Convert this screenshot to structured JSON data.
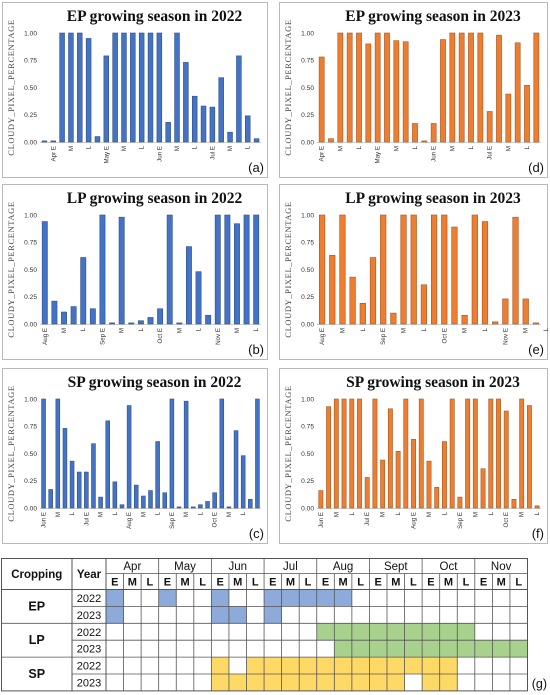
{
  "charts": [
    {
      "id": "a",
      "type": "bar",
      "title": "EP growing  season  in  2022",
      "ylabel": "CLOUDY_PIXEL_PERCENTAGE",
      "panel_label": "(a)",
      "color": "#4472c4",
      "ylim": [
        0,
        1
      ],
      "yticks": [
        "0.00",
        "0.25",
        "0.50",
        "0.75",
        "1.00"
      ],
      "values": [
        0.01,
        0.01,
        1.0,
        1.0,
        1.0,
        0.95,
        0.05,
        0.79,
        1.0,
        1.0,
        1.0,
        1.0,
        1.0,
        1.0,
        0.18,
        1.0,
        0.73,
        0.42,
        0.33,
        0.32,
        0.59,
        0.09,
        0.79,
        0.24,
        0.03
      ],
      "xticks": [
        {
          "i": 1,
          "label": "Apr E"
        },
        {
          "i": 3,
          "label": "M"
        },
        {
          "i": 5,
          "label": "L"
        },
        {
          "i": 7,
          "label": "May E"
        },
        {
          "i": 9,
          "label": "M"
        },
        {
          "i": 11,
          "label": "L"
        },
        {
          "i": 13,
          "label": "Jun E"
        },
        {
          "i": 15,
          "label": "M"
        },
        {
          "i": 17,
          "label": "L"
        },
        {
          "i": 19,
          "label": "Jul E"
        },
        {
          "i": 21,
          "label": "M"
        },
        {
          "i": 23,
          "label": "L"
        }
      ]
    },
    {
      "id": "d",
      "type": "bar",
      "title": "EP growing  season  in  2023",
      "ylabel": "CLOUDY_PIXEL_PERCENTAGE",
      "panel_label": "(d)",
      "color": "#ed7d31",
      "ylim": [
        0,
        1
      ],
      "yticks": [
        "0.00",
        "0.25",
        "0.50",
        "0.75",
        "1.00"
      ],
      "values": [
        0.78,
        0.03,
        1.0,
        1.0,
        1.0,
        0.9,
        1.0,
        1.0,
        0.93,
        0.92,
        0.17,
        0.01,
        0.17,
        0.94,
        1.0,
        1.0,
        1.0,
        1.0,
        0.28,
        0.98,
        0.44,
        0.91,
        0.52,
        1.0
      ],
      "xticks": [
        {
          "i": 0,
          "label": "Apr E"
        },
        {
          "i": 2,
          "label": "M"
        },
        {
          "i": 4,
          "label": "L"
        },
        {
          "i": 6,
          "label": "May E"
        },
        {
          "i": 8,
          "label": "M"
        },
        {
          "i": 10,
          "label": "L"
        },
        {
          "i": 12,
          "label": "Jun E"
        },
        {
          "i": 14,
          "label": "M"
        },
        {
          "i": 16,
          "label": "L"
        },
        {
          "i": 18,
          "label": "Jul E"
        },
        {
          "i": 20,
          "label": "M"
        },
        {
          "i": 22,
          "label": "L"
        }
      ]
    },
    {
      "id": "b",
      "type": "bar",
      "title": "LP growing  season  in  2022",
      "ylabel": "CLOUDY_PIXEL_PERCENTAGE",
      "panel_label": "(b)",
      "color": "#4472c4",
      "ylim": [
        0,
        1
      ],
      "yticks": [
        "0.00",
        "0.25",
        "0.50",
        "0.75",
        "1.00"
      ],
      "values": [
        0.94,
        0.21,
        0.11,
        0.16,
        0.61,
        0.14,
        1.0,
        0.01,
        0.98,
        0.01,
        0.03,
        0.06,
        0.14,
        1.0,
        0.01,
        0.71,
        0.48,
        0.08,
        1.0,
        1.0,
        0.92,
        1.0,
        1.0
      ],
      "xticks": [
        {
          "i": 0,
          "label": "Aug E"
        },
        {
          "i": 2,
          "label": "M"
        },
        {
          "i": 4,
          "label": "L"
        },
        {
          "i": 6,
          "label": "Sep E"
        },
        {
          "i": 8,
          "label": "M"
        },
        {
          "i": 10,
          "label": "L"
        },
        {
          "i": 12,
          "label": "Oct E"
        },
        {
          "i": 14,
          "label": "M"
        },
        {
          "i": 16,
          "label": "L"
        },
        {
          "i": 18,
          "label": "Nov E"
        },
        {
          "i": 20,
          "label": "M"
        },
        {
          "i": 22,
          "label": "L"
        }
      ]
    },
    {
      "id": "e",
      "type": "bar",
      "title": "LP growing  season  in  2023",
      "ylabel": "CLOUDY_PIXEL_PERCENTAGE",
      "panel_label": "(e)",
      "color": "#ed7d31",
      "ylim": [
        0,
        1
      ],
      "yticks": [
        "0.00",
        "0.25",
        "0.50",
        "0.75",
        "1.00"
      ],
      "values": [
        1.0,
        0.63,
        1.0,
        0.43,
        0.19,
        0.61,
        1.0,
        0.1,
        1.0,
        1.0,
        0.36,
        1.0,
        1.0,
        0.89,
        0.08,
        1.0,
        0.94,
        0.02,
        0.23,
        0.98,
        0.23,
        0.01
      ],
      "xticks": [
        {
          "i": 0,
          "label": "Aug E"
        },
        {
          "i": 2,
          "label": "M"
        },
        {
          "i": 4,
          "label": "L"
        },
        {
          "i": 6,
          "label": "Sep E"
        },
        {
          "i": 8,
          "label": "M"
        },
        {
          "i": 10,
          "label": "L"
        },
        {
          "i": 12,
          "label": "Oct E"
        },
        {
          "i": 14,
          "label": "M"
        },
        {
          "i": 16,
          "label": "L"
        },
        {
          "i": 18,
          "label": "Nov E"
        },
        {
          "i": 20,
          "label": "M"
        },
        {
          "i": 22,
          "label": "L"
        }
      ]
    },
    {
      "id": "c",
      "type": "bar",
      "title": "SP growing  season  in  2022",
      "ylabel": "CLOUDY_PIXEL_PERCENTAGE",
      "panel_label": "(c)",
      "color": "#4472c4",
      "ylim": [
        0,
        1
      ],
      "yticks": [
        "0.00",
        "0.25",
        "0.50",
        "0.75",
        "1.00"
      ],
      "values": [
        1.0,
        0.17,
        1.0,
        0.73,
        0.43,
        0.33,
        0.33,
        0.59,
        0.1,
        0.8,
        0.24,
        0.03,
        0.94,
        0.21,
        0.11,
        0.16,
        0.61,
        0.14,
        1.0,
        0.01,
        0.98,
        0.01,
        0.03,
        0.06,
        0.14,
        1.0,
        0.01,
        0.71,
        0.48,
        0.08,
        1.0
      ],
      "xticks": [
        {
          "i": 0,
          "label": "Jun E"
        },
        {
          "i": 2,
          "label": "M"
        },
        {
          "i": 4,
          "label": "L"
        },
        {
          "i": 6,
          "label": "Jul E"
        },
        {
          "i": 8,
          "label": "M"
        },
        {
          "i": 10,
          "label": "L"
        },
        {
          "i": 12,
          "label": "Aug E"
        },
        {
          "i": 14,
          "label": "M"
        },
        {
          "i": 16,
          "label": "L"
        },
        {
          "i": 18,
          "label": "Sep E"
        },
        {
          "i": 20,
          "label": "M"
        },
        {
          "i": 22,
          "label": "L"
        },
        {
          "i": 24,
          "label": "Oct E"
        },
        {
          "i": 26,
          "label": "M"
        },
        {
          "i": 28,
          "label": "L"
        }
      ]
    },
    {
      "id": "f",
      "type": "bar",
      "title": "SP growing  season  in  2023",
      "ylabel": "CLOUDY_PIXEL_PERCENTAGE",
      "panel_label": "(f)",
      "color": "#ed7d31",
      "ylim": [
        0,
        1
      ],
      "yticks": [
        "0.00",
        "0.25",
        "0.50",
        "0.75",
        "1.00"
      ],
      "values": [
        0.16,
        0.93,
        1.0,
        1.0,
        1.0,
        1.0,
        0.28,
        1.0,
        0.44,
        0.91,
        0.52,
        1.0,
        0.63,
        1.0,
        0.43,
        0.19,
        0.61,
        1.0,
        0.1,
        1.0,
        1.0,
        0.36,
        1.0,
        1.0,
        0.89,
        0.08,
        1.0,
        0.94,
        0.02
      ],
      "xticks": [
        {
          "i": 0,
          "label": "Jun E"
        },
        {
          "i": 2,
          "label": "M"
        },
        {
          "i": 4,
          "label": "L"
        },
        {
          "i": 6,
          "label": "Jul E"
        },
        {
          "i": 8,
          "label": "M"
        },
        {
          "i": 10,
          "label": "L"
        },
        {
          "i": 12,
          "label": "Aug E"
        },
        {
          "i": 14,
          "label": "M"
        },
        {
          "i": 16,
          "label": "L"
        },
        {
          "i": 18,
          "label": "Sep E"
        },
        {
          "i": 20,
          "label": "M"
        },
        {
          "i": 22,
          "label": "L"
        },
        {
          "i": 24,
          "label": "Oct E"
        },
        {
          "i": 26,
          "label": "M"
        },
        {
          "i": 28,
          "label": "L"
        }
      ]
    }
  ],
  "chart_data": [
    {
      "type": "bar",
      "title": "EP growing  season  in  2022",
      "ylabel": "CLOUDY_PIXEL_PERCENTAGE",
      "ylim": [
        0,
        1
      ],
      "series": [
        {
          "values": [
            0.01,
            0.01,
            1.0,
            1.0,
            1.0,
            0.95,
            0.05,
            0.79,
            1.0,
            1.0,
            1.0,
            1.0,
            1.0,
            1.0,
            0.18,
            1.0,
            0.73,
            0.42,
            0.33,
            0.32,
            0.59,
            0.09,
            0.79,
            0.24,
            0.03
          ]
        }
      ]
    },
    {
      "type": "bar",
      "title": "EP growing  season  in  2023",
      "ylabel": "CLOUDY_PIXEL_PERCENTAGE",
      "ylim": [
        0,
        1
      ],
      "series": [
        {
          "values": [
            0.78,
            0.03,
            1.0,
            1.0,
            1.0,
            0.9,
            1.0,
            1.0,
            0.93,
            0.92,
            0.17,
            0.01,
            0.17,
            0.94,
            1.0,
            1.0,
            1.0,
            1.0,
            0.28,
            0.98,
            0.44,
            0.91,
            0.52,
            1.0
          ]
        }
      ]
    },
    {
      "type": "bar",
      "title": "LP growing  season  in  2022",
      "ylabel": "CLOUDY_PIXEL_PERCENTAGE",
      "ylim": [
        0,
        1
      ],
      "series": [
        {
          "values": [
            0.94,
            0.21,
            0.11,
            0.16,
            0.61,
            0.14,
            1.0,
            0.01,
            0.98,
            0.01,
            0.03,
            0.06,
            0.14,
            1.0,
            0.01,
            0.71,
            0.48,
            0.08,
            1.0,
            1.0,
            0.92,
            1.0,
            1.0
          ]
        }
      ]
    },
    {
      "type": "bar",
      "title": "LP growing  season  in  2023",
      "ylabel": "CLOUDY_PIXEL_PERCENTAGE",
      "ylim": [
        0,
        1
      ],
      "series": [
        {
          "values": [
            1.0,
            0.63,
            1.0,
            0.43,
            0.19,
            0.61,
            1.0,
            0.1,
            1.0,
            1.0,
            0.36,
            1.0,
            1.0,
            0.89,
            0.08,
            1.0,
            0.94,
            0.02,
            0.23,
            0.98,
            0.23,
            0.01
          ]
        }
      ]
    },
    {
      "type": "bar",
      "title": "SP growing  season  in  2022",
      "ylabel": "CLOUDY_PIXEL_PERCENTAGE",
      "ylim": [
        0,
        1
      ],
      "series": [
        {
          "values": [
            1.0,
            0.17,
            1.0,
            0.73,
            0.43,
            0.33,
            0.33,
            0.59,
            0.1,
            0.8,
            0.24,
            0.03,
            0.94,
            0.21,
            0.11,
            0.16,
            0.61,
            0.14,
            1.0,
            0.01,
            0.98,
            0.01,
            0.03,
            0.06,
            0.14,
            1.0,
            0.01,
            0.71,
            0.48,
            0.08,
            1.0
          ]
        }
      ]
    },
    {
      "type": "bar",
      "title": "SP growing  season  in  2023",
      "ylabel": "CLOUDY_PIXEL_PERCENTAGE",
      "ylim": [
        0,
        1
      ],
      "series": [
        {
          "values": [
            0.16,
            0.93,
            1.0,
            1.0,
            1.0,
            1.0,
            0.28,
            1.0,
            0.44,
            0.91,
            0.52,
            1.0,
            0.63,
            1.0,
            0.43,
            0.19,
            0.61,
            1.0,
            0.1,
            1.0,
            1.0,
            0.36,
            1.0,
            1.0,
            0.89,
            0.08,
            1.0,
            0.94,
            0.02
          ]
        }
      ]
    },
    {
      "type": "table",
      "panel_label": "(g)",
      "headers": {
        "cropping": "Cropping",
        "year": "Year"
      },
      "months": [
        "Apr",
        "May",
        "Jun",
        "Jul",
        "Aug",
        "Sept",
        "Oct",
        "Nov"
      ],
      "subperiods": [
        "E",
        "M",
        "L"
      ],
      "colors": {
        "EP": "#8eaadb",
        "LP": "#a9d18e",
        "SP": "#ffd966"
      },
      "rows": [
        {
          "crop": "EP",
          "year": "2022",
          "filled": [
            0,
            3,
            6,
            9,
            10,
            11,
            12,
            13
          ]
        },
        {
          "crop": "EP",
          "year": "2023",
          "filled": [
            0,
            6,
            7,
            9
          ]
        },
        {
          "crop": "LP",
          "year": "2022",
          "filled": [
            12,
            13,
            14,
            15,
            16,
            17,
            18,
            19,
            20
          ]
        },
        {
          "crop": "LP",
          "year": "2023",
          "filled": [
            13,
            14,
            15,
            16,
            17,
            18,
            19,
            20,
            21,
            22,
            23
          ]
        },
        {
          "crop": "SP",
          "year": "2022",
          "filled": [
            6,
            8,
            9,
            10,
            11,
            12,
            13,
            14,
            15,
            16,
            17,
            18,
            19
          ]
        },
        {
          "crop": "SP",
          "year": "2023",
          "filled": [
            6,
            7,
            8,
            9,
            10,
            11,
            12,
            13,
            14,
            15,
            16,
            18,
            19
          ]
        }
      ]
    }
  ]
}
